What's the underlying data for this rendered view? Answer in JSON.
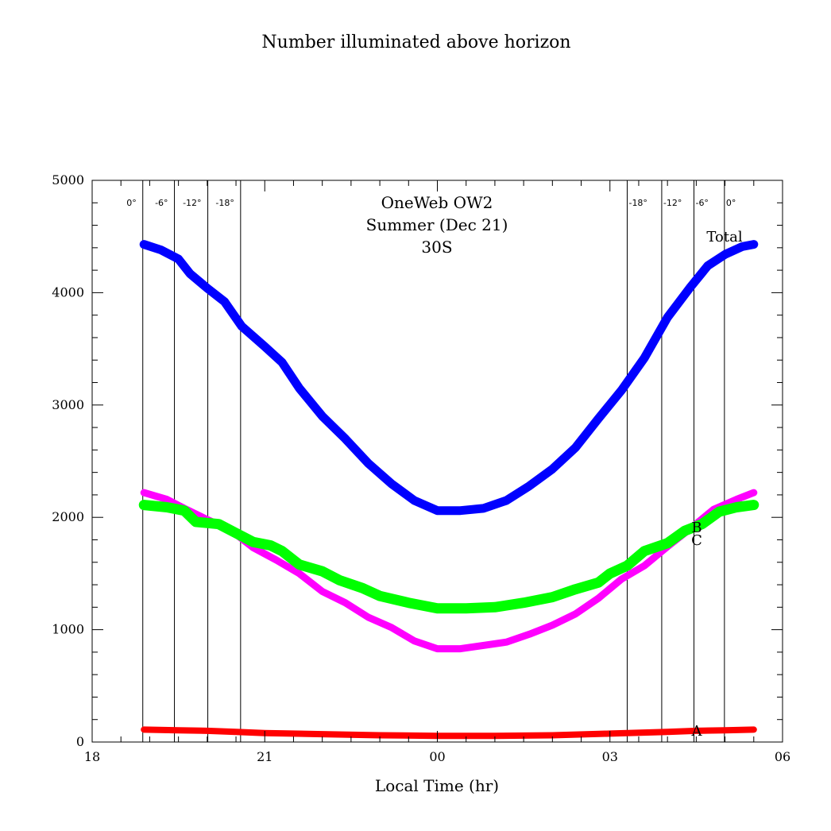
{
  "chart_data": {
    "type": "line",
    "title": "Number illuminated above horizon",
    "xlabel": "Local Time (hr)",
    "ylabel": "",
    "xlim": [
      18,
      30
    ],
    "ylim": [
      0,
      5000
    ],
    "x_ticks": [
      {
        "x": 18,
        "label": "18"
      },
      {
        "x": 21,
        "label": "21"
      },
      {
        "x": 24,
        "label": "00"
      },
      {
        "x": 27,
        "label": "03"
      },
      {
        "x": 30,
        "label": "06"
      }
    ],
    "y_ticks": [
      {
        "y": 0,
        "label": "0"
      },
      {
        "y": 1000,
        "label": "1000"
      },
      {
        "y": 2000,
        "label": "2000"
      },
      {
        "y": 3000,
        "label": "3000"
      },
      {
        "y": 4000,
        "label": "4000"
      },
      {
        "y": 5000,
        "label": "5000"
      }
    ],
    "annotation_lines": [
      "OneWeb OW2",
      "Summer (Dec 21)",
      "30S"
    ],
    "twilight_lines": [
      {
        "x": 18.88,
        "label": "0°"
      },
      {
        "x": 19.43,
        "label": "-6°"
      },
      {
        "x": 20.01,
        "label": "-12°"
      },
      {
        "x": 20.58,
        "label": "-18°"
      },
      {
        "x": 27.3,
        "label": "-18°"
      },
      {
        "x": 27.9,
        "label": "-12°"
      },
      {
        "x": 28.46,
        "label": "-6°"
      },
      {
        "x": 28.99,
        "label": "0°"
      }
    ],
    "series": [
      {
        "name": "Total",
        "color": "#0000ff",
        "points": [
          [
            18.9,
            4430
          ],
          [
            19.2,
            4380
          ],
          [
            19.5,
            4300
          ],
          [
            19.7,
            4170
          ],
          [
            20.0,
            4040
          ],
          [
            20.3,
            3920
          ],
          [
            20.6,
            3700
          ],
          [
            21.0,
            3520
          ],
          [
            21.3,
            3380
          ],
          [
            21.6,
            3150
          ],
          [
            22.0,
            2900
          ],
          [
            22.4,
            2700
          ],
          [
            22.8,
            2480
          ],
          [
            23.2,
            2300
          ],
          [
            23.6,
            2150
          ],
          [
            24.0,
            2060
          ],
          [
            24.4,
            2060
          ],
          [
            24.8,
            2080
          ],
          [
            25.2,
            2150
          ],
          [
            25.6,
            2280
          ],
          [
            26.0,
            2430
          ],
          [
            26.4,
            2620
          ],
          [
            26.8,
            2880
          ],
          [
            27.2,
            3130
          ],
          [
            27.6,
            3420
          ],
          [
            28.0,
            3780
          ],
          [
            28.4,
            4050
          ],
          [
            28.7,
            4240
          ],
          [
            29.0,
            4340
          ],
          [
            29.3,
            4410
          ],
          [
            29.5,
            4430
          ]
        ]
      },
      {
        "name": "B",
        "color": "#ff00ff",
        "points": [
          [
            18.9,
            2220
          ],
          [
            19.3,
            2160
          ],
          [
            19.6,
            2080
          ],
          [
            20.0,
            1980
          ],
          [
            20.4,
            1890
          ],
          [
            20.8,
            1730
          ],
          [
            21.2,
            1620
          ],
          [
            21.6,
            1500
          ],
          [
            22.0,
            1340
          ],
          [
            22.4,
            1240
          ],
          [
            22.8,
            1110
          ],
          [
            23.2,
            1020
          ],
          [
            23.6,
            900
          ],
          [
            24.0,
            830
          ],
          [
            24.4,
            830
          ],
          [
            24.8,
            860
          ],
          [
            25.2,
            890
          ],
          [
            25.6,
            960
          ],
          [
            26.0,
            1040
          ],
          [
            26.4,
            1140
          ],
          [
            26.8,
            1280
          ],
          [
            27.2,
            1450
          ],
          [
            27.6,
            1570
          ],
          [
            28.0,
            1740
          ],
          [
            28.4,
            1900
          ],
          [
            28.8,
            2070
          ],
          [
            29.2,
            2160
          ],
          [
            29.5,
            2220
          ]
        ]
      },
      {
        "name": "C",
        "color": "#00ff00",
        "points": [
          [
            18.9,
            2110
          ],
          [
            19.3,
            2090
          ],
          [
            19.6,
            2060
          ],
          [
            19.8,
            1960
          ],
          [
            20.2,
            1940
          ],
          [
            20.5,
            1860
          ],
          [
            20.8,
            1780
          ],
          [
            21.1,
            1750
          ],
          [
            21.3,
            1700
          ],
          [
            21.6,
            1580
          ],
          [
            22.0,
            1520
          ],
          [
            22.3,
            1440
          ],
          [
            22.7,
            1370
          ],
          [
            23.0,
            1300
          ],
          [
            23.5,
            1240
          ],
          [
            24.0,
            1190
          ],
          [
            24.5,
            1190
          ],
          [
            25.0,
            1200
          ],
          [
            25.5,
            1240
          ],
          [
            26.0,
            1290
          ],
          [
            26.4,
            1360
          ],
          [
            26.8,
            1420
          ],
          [
            27.0,
            1500
          ],
          [
            27.3,
            1570
          ],
          [
            27.6,
            1700
          ],
          [
            28.0,
            1770
          ],
          [
            28.3,
            1880
          ],
          [
            28.6,
            1940
          ],
          [
            28.9,
            2050
          ],
          [
            29.2,
            2090
          ],
          [
            29.5,
            2110
          ]
        ]
      },
      {
        "name": "A",
        "color": "#ff0000",
        "points": [
          [
            18.9,
            110
          ],
          [
            19.5,
            105
          ],
          [
            20.0,
            100
          ],
          [
            20.5,
            90
          ],
          [
            21.0,
            80
          ],
          [
            22.0,
            70
          ],
          [
            23.0,
            60
          ],
          [
            24.0,
            55
          ],
          [
            25.0,
            55
          ],
          [
            26.0,
            60
          ],
          [
            27.0,
            75
          ],
          [
            28.0,
            90
          ],
          [
            28.5,
            100
          ],
          [
            29.0,
            105
          ],
          [
            29.5,
            110
          ]
        ]
      }
    ],
    "series_labels": [
      {
        "text": "Total",
        "color": "#000000"
      },
      {
        "text": "B",
        "color": "#ff00ff"
      },
      {
        "text": "C",
        "color": "#00c800"
      },
      {
        "text": "A",
        "color": "#ff0000"
      }
    ]
  }
}
